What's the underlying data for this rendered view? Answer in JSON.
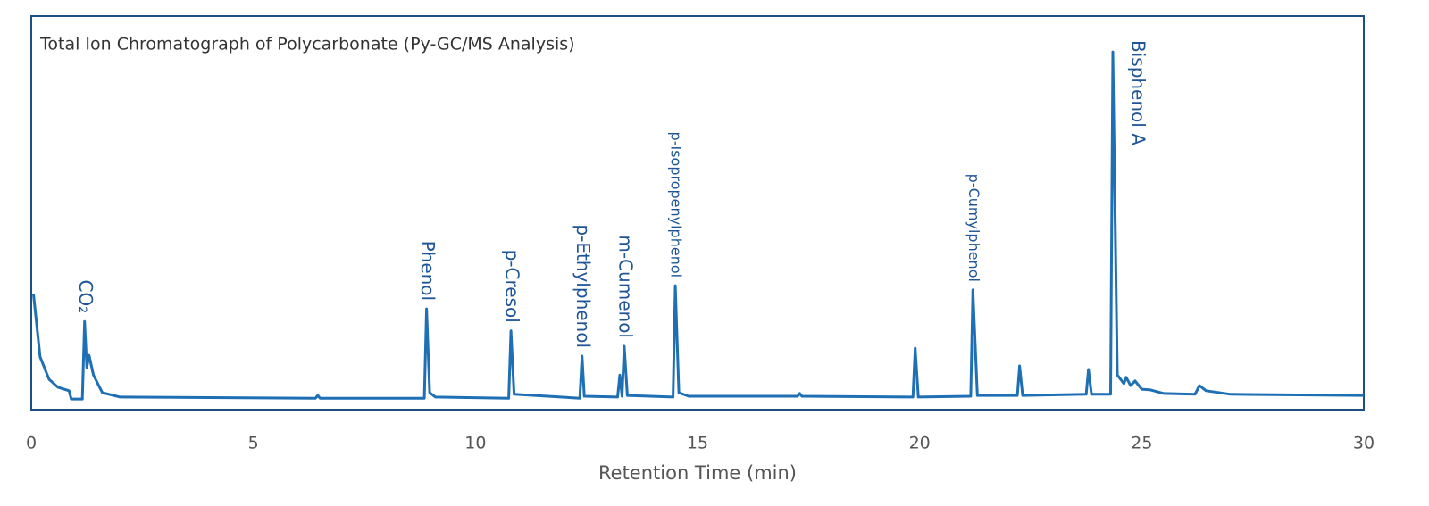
{
  "chart_data": {
    "type": "line",
    "title": "Total Ion Chromatograph of Polycarbonate (Py-GC/MS Analysis)",
    "x_label": "Retention Time (min)",
    "color": "#1f6fb5",
    "x": [
      0.05,
      0.2,
      0.4,
      0.6,
      0.85,
      0.9,
      1.15,
      1.2,
      1.25,
      1.3,
      1.4,
      1.6,
      2.0,
      6.4,
      6.45,
      6.5,
      8.85,
      8.9,
      8.97,
      9.1,
      10.75,
      10.8,
      10.87,
      12.35,
      12.4,
      12.45,
      13.2,
      13.25,
      13.3,
      13.35,
      13.42,
      14.45,
      14.5,
      14.58,
      14.8,
      17.25,
      17.3,
      17.35,
      19.85,
      19.9,
      19.97,
      21.15,
      21.2,
      21.3,
      22.2,
      22.25,
      22.32,
      23.75,
      23.8,
      23.87,
      24.3,
      24.35,
      24.45,
      24.6,
      24.65,
      24.75,
      24.85,
      25.0,
      25.2,
      25.5,
      26.2,
      26.3,
      26.45,
      27.0,
      30.0
    ],
    "values": [
      29.3,
      13.4,
      7.7,
      5.7,
      4.8,
      2.7,
      2.7,
      22.4,
      10.7,
      13.8,
      8.8,
      4.3,
      3.2,
      2.9,
      3.6,
      2.9,
      2.9,
      25.6,
      4.3,
      3.2,
      2.9,
      20.0,
      3.9,
      2.9,
      13.6,
      3.4,
      3.2,
      8.8,
      3.4,
      16.1,
      3.6,
      3.2,
      31.5,
      4.3,
      3.4,
      3.4,
      4.1,
      3.4,
      3.2,
      15.6,
      3.2,
      3.4,
      30.4,
      3.6,
      3.6,
      11.1,
      3.6,
      3.9,
      10.2,
      3.9,
      3.9,
      90.9,
      8.8,
      6.6,
      8.2,
      6.1,
      7.3,
      5.2,
      5.0,
      4.1,
      3.9,
      6.1,
      4.8,
      3.9,
      3.6
    ],
    "xlim": [
      0,
      30
    ],
    "xticks": [
      0,
      5,
      10,
      15,
      20,
      25,
      30
    ],
    "ylim": [
      0,
      100
    ],
    "annotations": [
      {
        "text": "CO₂",
        "x": 1.2
      },
      {
        "text": "Phenol",
        "x": 8.9
      },
      {
        "text": "p-Cresol",
        "x": 10.8
      },
      {
        "text": "p-Ethylphenol",
        "x": 12.4
      },
      {
        "text": "m-Cumenol",
        "x": 13.35
      },
      {
        "text": "p-Isopropenylphenol",
        "x": 14.5
      },
      {
        "text": "p-Cumylphenol",
        "x": 21.2
      },
      {
        "text": "Bisphenol A",
        "x": 24.35
      }
    ]
  }
}
